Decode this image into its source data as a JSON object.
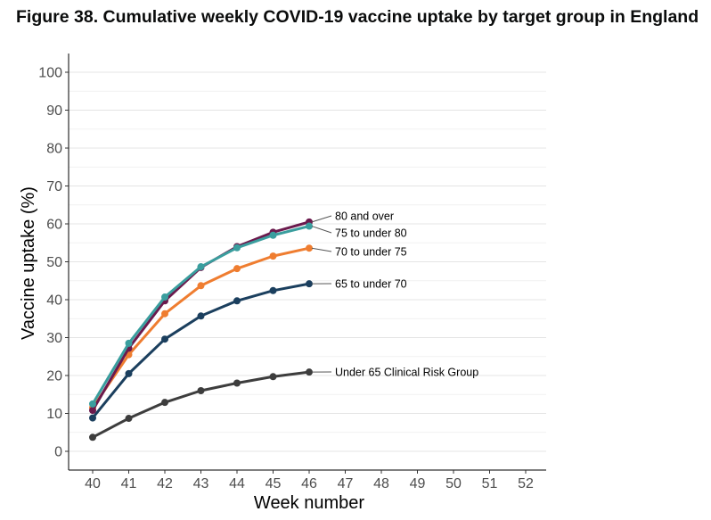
{
  "figure": {
    "title": "Figure 38. Cumulative weekly COVID-19 vaccine uptake by target group in England"
  },
  "chart_data": {
    "type": "line",
    "title": "",
    "xlabel": "Week number",
    "ylabel": "Vaccine uptake (%)",
    "xlim": [
      40,
      52
    ],
    "ylim": [
      0,
      100
    ],
    "x_ticks": [
      40,
      41,
      42,
      43,
      44,
      45,
      46,
      47,
      48,
      49,
      50,
      51,
      52
    ],
    "y_ticks": [
      0,
      10,
      20,
      30,
      40,
      50,
      60,
      70,
      80,
      90,
      100
    ],
    "grid": "horizontal",
    "legend": "direct labels at line ends",
    "x": [
      40,
      41,
      42,
      43,
      44,
      45,
      46
    ],
    "series": [
      {
        "name": "80 and over",
        "color": "#6b1a4d",
        "values": [
          10.8,
          27.2,
          39.7,
          48.5,
          54.0,
          57.8,
          60.5
        ]
      },
      {
        "name": "75 to under 80",
        "color": "#3a9e9e",
        "values": [
          12.5,
          28.5,
          40.7,
          48.7,
          53.7,
          57.0,
          59.4
        ]
      },
      {
        "name": "70 to under 75",
        "color": "#ef7d30",
        "values": [
          11.5,
          25.5,
          36.3,
          43.7,
          48.2,
          51.5,
          53.6
        ]
      },
      {
        "name": "65 to under 70",
        "color": "#1b3f5e",
        "values": [
          8.8,
          20.5,
          29.6,
          35.7,
          39.7,
          42.4,
          44.2
        ]
      },
      {
        "name": "Under 65 Clinical Risk Group",
        "color": "#3d3d3d",
        "values": [
          3.7,
          8.7,
          12.9,
          16.0,
          18.0,
          19.7,
          20.9
        ]
      }
    ]
  }
}
